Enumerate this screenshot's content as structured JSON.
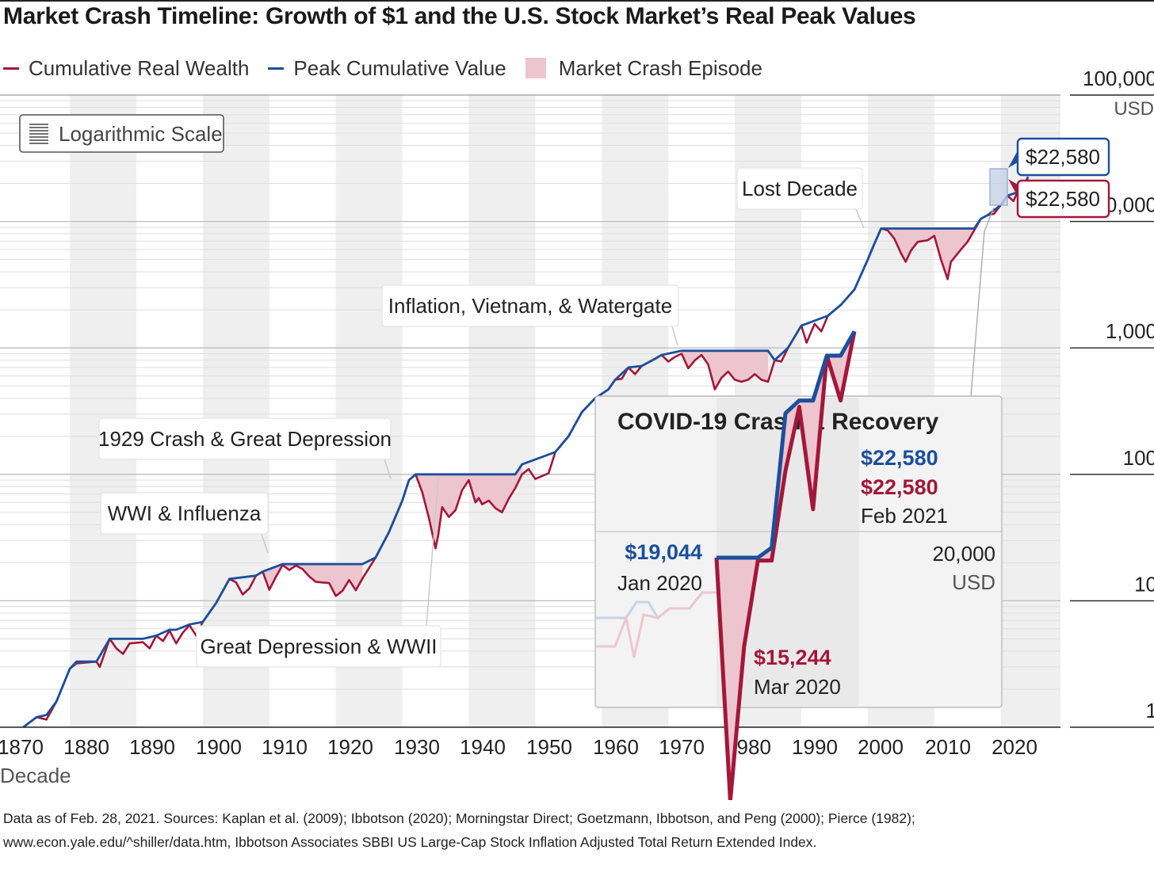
{
  "title": "Market Crash Timeline: Growth of $1 and the U.S. Stock Market’s Real Peak Values",
  "legend": {
    "wealth": "Cumulative Real Wealth",
    "peak": "Peak Cumulative Value",
    "crash": "Market Crash Episode"
  },
  "colors": {
    "wealth": "#a3173a",
    "peak": "#1c4f9c",
    "crash_fill": "#ecc5cf",
    "band": "#efefef"
  },
  "scale_button": {
    "icon": "lines-icon",
    "label": "Logarithmic Scale"
  },
  "footnote": [
    "Data as of Feb. 28, 2021. Sources: Kaplan et al. (2009); Ibbotson (2020); Morningstar Direct; Goetzmann, Ibbotson, and Peng (2000); Pierce (1982);",
    "www.econ.yale.edu/^shiller/data.htm, Ibbotson Associates SBBI US Large-Cap Stock Inflation Adjusted Total Return Extended Index."
  ],
  "chart_data": [
    {
      "type": "line",
      "title": "Market Crash Timeline: Growth of $1 and the U.S. Stock Market’s Real Peak Values",
      "xlabel": "Decade",
      "ylabel": "",
      "yscale": "log",
      "xlim": [
        1870,
        2021
      ],
      "ylim": [
        1,
        100000
      ],
      "grid": true,
      "legend_position": "top-left",
      "x_ticks": [
        "1870",
        "1880",
        "1890",
        "1900",
        "1910",
        "1920",
        "1930",
        "1940",
        "1950",
        "1960",
        "1970",
        "1980",
        "1990",
        "2000",
        "2010",
        "2020"
      ],
      "y_ticks": [
        {
          "value": 1,
          "label": "1"
        },
        {
          "value": 10,
          "label": "10"
        },
        {
          "value": 100,
          "label": "100"
        },
        {
          "value": 1000,
          "label": "1,000"
        },
        {
          "value": 10000,
          "label": "10,000"
        },
        {
          "value": 100000,
          "label": "100,000"
        }
      ],
      "y_unit": "USD",
      "series": [
        {
          "name": "Cumulative Real Wealth",
          "key": "wealth",
          "points": [
            [
              1870,
              1.0
            ],
            [
              1872,
              1.2
            ],
            [
              1873.5,
              1.15
            ],
            [
              1875,
              1.6
            ],
            [
              1877,
              2.9
            ],
            [
              1878,
              3.2
            ],
            [
              1881,
              3.3
            ],
            [
              1881.5,
              3.0
            ],
            [
              1883,
              5.0
            ],
            [
              1884,
              4.2
            ],
            [
              1885,
              3.8
            ],
            [
              1886,
              4.6
            ],
            [
              1888,
              4.7
            ],
            [
              1889,
              4.2
            ],
            [
              1890,
              5.3
            ],
            [
              1891,
              4.8
            ],
            [
              1892,
              5.8
            ],
            [
              1893,
              4.6
            ],
            [
              1894,
              5.6
            ],
            [
              1895,
              6.4
            ],
            [
              1896,
              5.3
            ],
            [
              1897,
              6.8
            ],
            [
              1899,
              9.6
            ],
            [
              1901,
              14.9
            ],
            [
              1902,
              14.0
            ],
            [
              1903,
              11.2
            ],
            [
              1904,
              12.5
            ],
            [
              1905,
              15.8
            ],
            [
              1906,
              17.0
            ],
            [
              1907,
              12.2
            ],
            [
              1908,
              15.5
            ],
            [
              1909,
              19.2
            ],
            [
              1910,
              17.5
            ],
            [
              1911,
              19.0
            ],
            [
              1912,
              17.8
            ],
            [
              1913,
              15.6
            ],
            [
              1914,
              14.1
            ],
            [
              1916,
              13.8
            ],
            [
              1917,
              10.9
            ],
            [
              1918,
              12.0
            ],
            [
              1919,
              14.6
            ],
            [
              1920,
              12.1
            ],
            [
              1921,
              15.0
            ],
            [
              1923,
              22.0
            ],
            [
              1925,
              35.0
            ],
            [
              1927,
              62.0
            ],
            [
              1928,
              90.0
            ],
            [
              1929,
              100.0
            ],
            [
              1930,
              72.0
            ],
            [
              1931,
              45.0
            ],
            [
              1932,
              26.0
            ],
            [
              1932.4,
              33.0
            ],
            [
              1933,
              55.0
            ],
            [
              1934,
              46.0
            ],
            [
              1935,
              52.0
            ],
            [
              1936,
              75.0
            ],
            [
              1937,
              90.0
            ],
            [
              1938,
              60.0
            ],
            [
              1938.5,
              65.0
            ],
            [
              1939,
              58.0
            ],
            [
              1940,
              62.0
            ],
            [
              1941,
              54.0
            ],
            [
              1942,
              50.0
            ],
            [
              1943,
              64.0
            ],
            [
              1944,
              78.0
            ],
            [
              1945,
              100.0
            ],
            [
              1946,
              110.0
            ],
            [
              1947,
              92.0
            ],
            [
              1949,
              102.0
            ],
            [
              1950,
              150.0
            ],
            [
              1952,
              200.0
            ],
            [
              1954,
              310.0
            ],
            [
              1956,
              400.0
            ],
            [
              1958,
              470.0
            ],
            [
              1959,
              560.0
            ],
            [
              1960,
              570.0
            ],
            [
              1961,
              700.0
            ],
            [
              1962,
              620.0
            ],
            [
              1963,
              720.0
            ],
            [
              1965,
              820.0
            ],
            [
              1966,
              880.0
            ],
            [
              1967,
              780.0
            ],
            [
              1968,
              850.0
            ],
            [
              1969,
              900.0
            ],
            [
              1970,
              690.0
            ],
            [
              1971,
              800.0
            ],
            [
              1972,
              880.0
            ],
            [
              1973,
              740.0
            ],
            [
              1974,
              470.0
            ],
            [
              1975,
              580.0
            ],
            [
              1976,
              650.0
            ],
            [
              1977,
              560.0
            ],
            [
              1978,
              540.0
            ],
            [
              1979,
              560.0
            ],
            [
              1980,
              620.0
            ],
            [
              1981,
              560.0
            ],
            [
              1982,
              540.0
            ],
            [
              1983,
              800.0
            ],
            [
              1984,
              780.0
            ],
            [
              1985,
              1000.0
            ],
            [
              1987,
              1500.0
            ],
            [
              1987.8,
              1100.0
            ],
            [
              1989,
              1550.0
            ],
            [
              1990,
              1350.0
            ],
            [
              1991,
              1800.0
            ],
            [
              1993,
              2200.0
            ],
            [
              1995,
              2900.0
            ],
            [
              1997,
              5000.0
            ],
            [
              1998,
              6700.0
            ],
            [
              1999,
              8800.0
            ],
            [
              2000,
              8500.0
            ],
            [
              2001,
              7300.0
            ],
            [
              2002,
              5600.0
            ],
            [
              2002.7,
              4800.0
            ],
            [
              2003.5,
              5900.0
            ],
            [
              2004.5,
              6900.0
            ],
            [
              2006,
              7100.0
            ],
            [
              2007,
              7700.0
            ],
            [
              2008,
              5000.0
            ],
            [
              2009,
              3500.0
            ],
            [
              2009.5,
              4800.0
            ],
            [
              2011,
              6000.0
            ],
            [
              2012,
              6900.0
            ],
            [
              2013,
              8500.0
            ],
            [
              2014,
              10500.0
            ],
            [
              2015,
              11200.0
            ],
            [
              2016,
              11500.0
            ],
            [
              2017,
              13500.0
            ],
            [
              2018,
              16000.0
            ],
            [
              2018.9,
              14500.0
            ],
            [
              2019.5,
              17000.0
            ],
            [
              2020.0,
              19044.0
            ],
            [
              2020.2,
              15244.0
            ],
            [
              2020.6,
              19500.0
            ],
            [
              2021.1,
              22580.0
            ]
          ]
        },
        {
          "name": "Peak Cumulative Value",
          "key": "peak",
          "points": [
            [
              1870,
              1.0
            ],
            [
              1872,
              1.2
            ],
            [
              1873.5,
              1.25
            ],
            [
              1875,
              1.6
            ],
            [
              1877,
              2.9
            ],
            [
              1878,
              3.3
            ],
            [
              1881,
              3.3
            ],
            [
              1883,
              5.0
            ],
            [
              1886,
              5.0
            ],
            [
              1888,
              5.0
            ],
            [
              1890,
              5.3
            ],
            [
              1892,
              5.9
            ],
            [
              1893,
              5.9
            ],
            [
              1895,
              6.5
            ],
            [
              1897,
              6.8
            ],
            [
              1899,
              9.6
            ],
            [
              1901,
              14.9
            ],
            [
              1905,
              15.8
            ],
            [
              1906,
              17.0
            ],
            [
              1909,
              19.5
            ],
            [
              1921,
              19.5
            ],
            [
              1923,
              22.0
            ],
            [
              1925,
              35.0
            ],
            [
              1927,
              62.0
            ],
            [
              1928,
              90.0
            ],
            [
              1929,
              100.0
            ],
            [
              1937,
              100.0
            ],
            [
              1944,
              100.0
            ],
            [
              1945,
              120.0
            ],
            [
              1950,
              150.0
            ],
            [
              1952,
              200.0
            ],
            [
              1954,
              310.0
            ],
            [
              1956,
              400.0
            ],
            [
              1958,
              470.0
            ],
            [
              1959,
              560.0
            ],
            [
              1961,
              700.0
            ],
            [
              1963,
              720.0
            ],
            [
              1965,
              820.0
            ],
            [
              1966,
              880.0
            ],
            [
              1969,
              950.0
            ],
            [
              1982,
              950.0
            ],
            [
              1983,
              800.0
            ],
            [
              1985,
              1000.0
            ],
            [
              1987,
              1500.0
            ],
            [
              1991,
              1800.0
            ],
            [
              1993,
              2200.0
            ],
            [
              1995,
              2900.0
            ],
            [
              1997,
              5000.0
            ],
            [
              1998,
              6700.0
            ],
            [
              1999,
              8800.0
            ],
            [
              2012,
              8800.0
            ],
            [
              2013,
              8800.0
            ],
            [
              2014,
              10500.0
            ],
            [
              2015,
              11200.0
            ],
            [
              2017,
              13500.0
            ],
            [
              2018,
              16000.0
            ],
            [
              2019.5,
              17000.0
            ],
            [
              2020.0,
              19044.0
            ],
            [
              2020.6,
              19500.0
            ],
            [
              2021.1,
              22580.0
            ]
          ]
        }
      ],
      "crash_episodes": [
        {
          "label": "WWI & Influenza",
          "start": 1906,
          "end": 1921
        },
        {
          "label": "1929 Crash & Great Depression",
          "start": 1929,
          "end": 1937
        },
        {
          "label": "Great Depression & WWII",
          "start": 1937,
          "end": 1945
        },
        {
          "label": "Inflation, Vietnam, & Watergate",
          "start": 1969,
          "end": 1982
        },
        {
          "label": "Lost Decade",
          "start": 2000,
          "end": 2013
        }
      ],
      "annotations": [
        {
          "text": "Lost Decade"
        },
        {
          "text": "Inflation, Vietnam, & Watergate"
        },
        {
          "text": "1929 Crash & Great Depression"
        },
        {
          "text": "WWI & Influenza"
        },
        {
          "text": "Great Depression & WWII"
        }
      ],
      "end_labels": {
        "peak": "$22,580",
        "wealth": "$22,580"
      }
    },
    {
      "type": "line",
      "title": "COVID-19 Crash & Recovery",
      "y_ticks": [
        {
          "value": 20000,
          "label": "20,000"
        }
      ],
      "y_unit": "USD",
      "series": [
        {
          "name": "Cumulative Real Wealth",
          "key": "wealth",
          "points": [
            [
              0,
              19044
            ],
            [
              1,
              15244
            ],
            [
              2,
              17650
            ],
            [
              3,
              19000
            ],
            [
              4,
              19000
            ],
            [
              5,
              20400
            ],
            [
              6,
              21400
            ],
            [
              7,
              19800
            ],
            [
              8,
              22200
            ],
            [
              9,
              21500
            ],
            [
              10,
              22580
            ]
          ]
        },
        {
          "name": "Peak Cumulative Value",
          "key": "peak",
          "points": [
            [
              0,
              19044
            ],
            [
              1,
              19044
            ],
            [
              2,
              19044
            ],
            [
              3,
              19044
            ],
            [
              4,
              19200
            ],
            [
              5,
              21300
            ],
            [
              6,
              21500
            ],
            [
              7,
              21500
            ],
            [
              8,
              22200
            ],
            [
              9,
              22200
            ],
            [
              10,
              22580
            ]
          ]
        }
      ],
      "labels": [
        {
          "value": "$19,044",
          "date": "Jan 2020",
          "series": "peak"
        },
        {
          "value": "$15,244",
          "date": "Mar 2020",
          "series": "wealth"
        },
        {
          "value": "$22,580",
          "date": "Feb 2021",
          "series": "peak"
        },
        {
          "value": "$22,580",
          "series": "wealth"
        }
      ]
    }
  ]
}
